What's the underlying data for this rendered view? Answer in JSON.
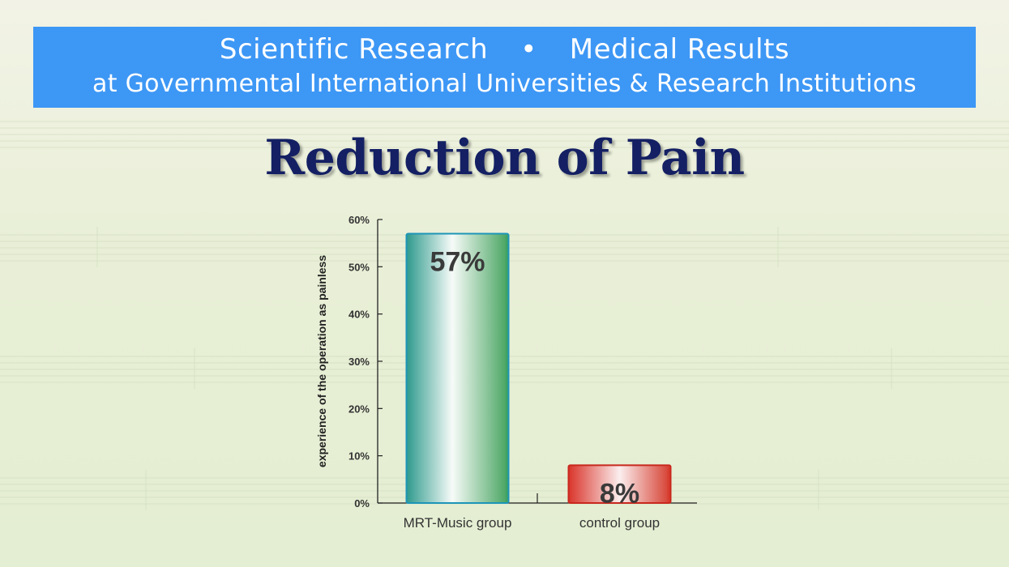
{
  "banner": {
    "line1_left": "Scientific Research",
    "line1_sep": "•",
    "line1_right": "Medical Results",
    "line2": "at Governmental International Universities & Research Institutions"
  },
  "title": "Reduction of Pain",
  "colors": {
    "banner": "#3d97f5",
    "title": "#142063",
    "music_bar": "#3aa463",
    "control_bar": "#d93a2c"
  },
  "chart_data": {
    "type": "bar",
    "title": "Reduction of Pain",
    "ylabel": "experience of the operation as painless",
    "xlabel": "",
    "categories": [
      "MRT-Music group",
      "control group"
    ],
    "values": [
      57,
      8
    ],
    "data_labels": [
      "57%",
      "8%"
    ],
    "yticks": [
      "0%",
      "10%",
      "20%",
      "30%",
      "40%",
      "50%",
      "60%"
    ],
    "ylim": [
      0,
      60
    ],
    "grid": false
  }
}
